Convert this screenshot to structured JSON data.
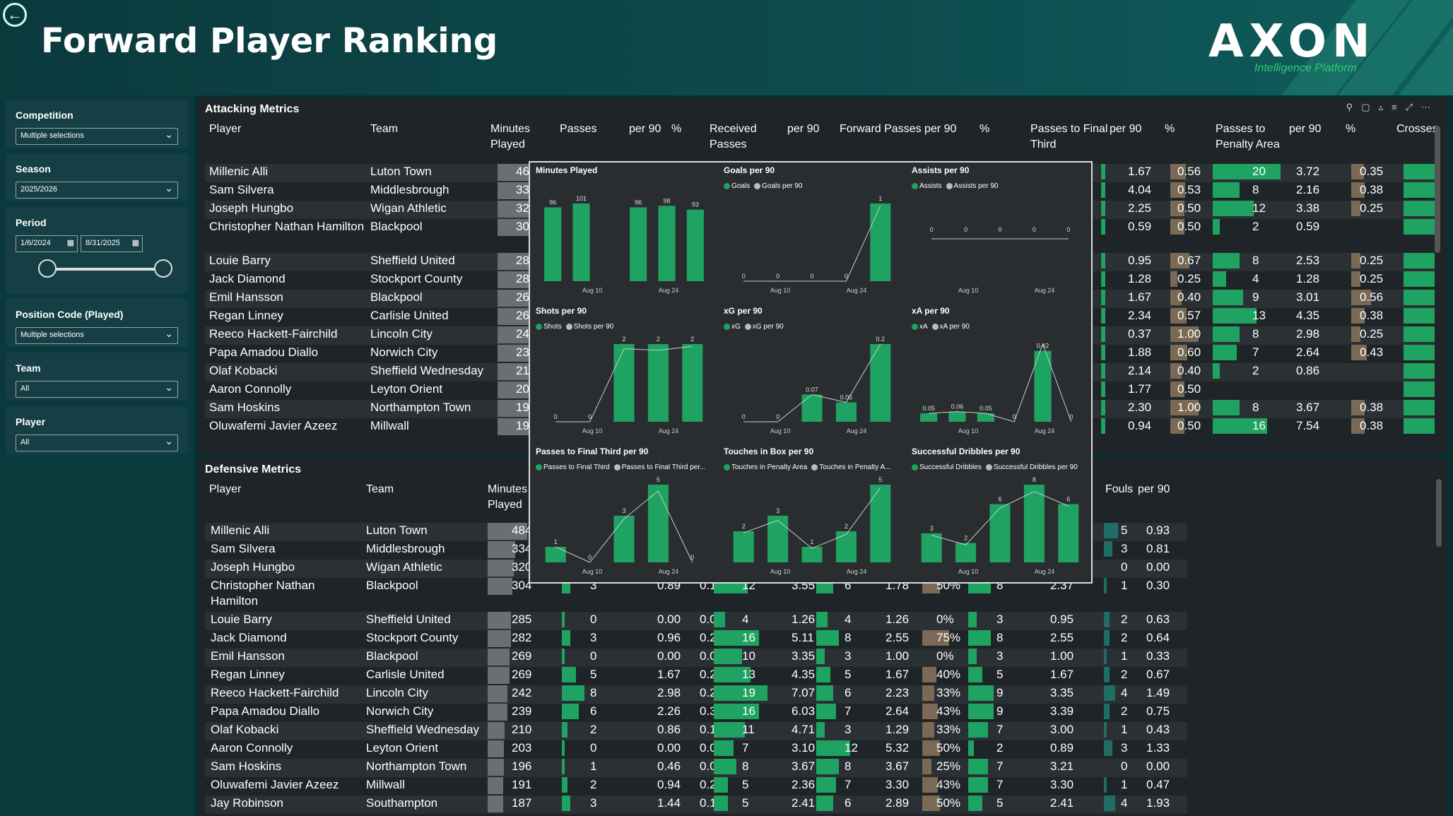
{
  "header": {
    "title": "Forward Player Ranking",
    "logo": "AXON",
    "logo_sub": "Intelligence Platform",
    "back_icon": "back-arrow-icon"
  },
  "filters": {
    "competition": {
      "label": "Competition",
      "value": "Multiple selections"
    },
    "season": {
      "label": "Season",
      "value": "2025/2026"
    },
    "period": {
      "label": "Period",
      "start": "1/6/2024",
      "end": "8/31/2025"
    },
    "position": {
      "label": "Position Code (Played)",
      "value": "Multiple selections"
    },
    "team": {
      "label": "Team",
      "value": "All"
    },
    "player": {
      "label": "Player",
      "value": "All"
    }
  },
  "attacking": {
    "title": "Attacking Metrics",
    "columns": [
      "Player",
      "Team",
      "Minutes Played",
      "Passes",
      "per 90",
      "%",
      "Received Passes",
      "per 90",
      "Forward Passes",
      "per 90",
      "%",
      "Passes to Final Third",
      "per 90",
      "%",
      "Passes to Penalty Area",
      "per 90",
      "%",
      "Crosses"
    ],
    "rows": [
      {
        "player": "Millenic Alli",
        "team": "Luton Town",
        "min": "46",
        "pft90": "1.67",
        "pftp": "0.56",
        "ppa": "20",
        "ppa90": "3.72",
        "ppap": "0.35"
      },
      {
        "player": "Sam Silvera",
        "team": "Middlesbrough",
        "min": "33",
        "pft90": "4.04",
        "pftp": "0.53",
        "ppa": "8",
        "ppa90": "2.16",
        "ppap": "0.38"
      },
      {
        "player": "Joseph Hungbo",
        "team": "Wigan Athletic",
        "min": "32",
        "pft90": "2.25",
        "pftp": "0.50",
        "ppa": "12",
        "ppa90": "3.38",
        "ppap": "0.25"
      },
      {
        "player": "Christopher Nathan Hamilton",
        "team": "Blackpool",
        "min": "30",
        "pft90": "0.59",
        "pftp": "0.50",
        "ppa": "2",
        "ppa90": "0.59",
        "ppap": ""
      },
      {
        "player": "Louie Barry",
        "team": "Sheffield United",
        "min": "28",
        "pft90": "0.95",
        "pftp": "0.67",
        "ppa": "8",
        "ppa90": "2.53",
        "ppap": "0.25"
      },
      {
        "player": "Jack Diamond",
        "team": "Stockport County",
        "min": "28",
        "pft90": "1.28",
        "pftp": "0.25",
        "ppa": "4",
        "ppa90": "1.28",
        "ppap": "0.25"
      },
      {
        "player": "Emil Hansson",
        "team": "Blackpool",
        "min": "26",
        "pft90": "1.67",
        "pftp": "0.40",
        "ppa": "9",
        "ppa90": "3.01",
        "ppap": "0.56"
      },
      {
        "player": "Regan Linney",
        "team": "Carlisle United",
        "min": "26",
        "pft90": "2.34",
        "pftp": "0.57",
        "ppa": "13",
        "ppa90": "4.35",
        "ppap": "0.38"
      },
      {
        "player": "Reeco Hackett-Fairchild",
        "team": "Lincoln City",
        "min": "24",
        "pft90": "0.37",
        "pftp": "1.00",
        "ppa": "8",
        "ppa90": "2.98",
        "ppap": "0.25"
      },
      {
        "player": "Papa Amadou Diallo",
        "team": "Norwich City",
        "min": "23",
        "pft90": "1.88",
        "pftp": "0.60",
        "ppa": "7",
        "ppa90": "2.64",
        "ppap": "0.43"
      },
      {
        "player": "Olaf Kobacki",
        "team": "Sheffield Wednesday",
        "min": "21",
        "pft90": "2.14",
        "pftp": "0.40",
        "ppa": "2",
        "ppa90": "0.86",
        "ppap": ""
      },
      {
        "player": "Aaron Connolly",
        "team": "Leyton Orient",
        "min": "20",
        "pft90": "1.77",
        "pftp": "0.50",
        "ppa": "",
        "ppa90": "",
        "ppap": ""
      },
      {
        "player": "Sam Hoskins",
        "team": "Northampton Town",
        "min": "19",
        "pft90": "2.30",
        "pftp": "1.00",
        "ppa": "8",
        "ppa90": "3.67",
        "ppap": "0.38"
      },
      {
        "player": "Oluwafemi Javier Azeez",
        "team": "Millwall",
        "min": "19",
        "pft90": "0.94",
        "pftp": "0.50",
        "ppa": "16",
        "ppa90": "7.54",
        "ppap": "0.38"
      }
    ]
  },
  "defensive": {
    "title": "Defensive Metrics",
    "columns": [
      "Player",
      "Team",
      "Minutes Played",
      "Fouls",
      "per 90"
    ],
    "rows": [
      {
        "player": "Millenic Alli",
        "team": "Luton Town",
        "min": "484",
        "c": [
          "",
          "",
          "",
          "",
          "",
          "",
          "",
          "",
          "",
          ""
        ],
        "fouls": "5",
        "f90": "0.93"
      },
      {
        "player": "Sam Silvera",
        "team": "Middlesbrough",
        "min": "334",
        "c": [
          "",
          "",
          "",
          "",
          "",
          "",
          "",
          "",
          "",
          ""
        ],
        "fouls": "3",
        "f90": "0.81"
      },
      {
        "player": "Joseph Hungbo",
        "team": "Wigan Athletic",
        "min": "320",
        "c": [
          "",
          "",
          "",
          "",
          "",
          "",
          "",
          "",
          "",
          ""
        ],
        "fouls": "0",
        "f90": "0.00"
      },
      {
        "player": "Christopher Nathan Hamilton",
        "team": "Blackpool",
        "min": "304",
        "c": [
          "3",
          "0.89",
          "0.15",
          "12",
          "3.55",
          "6",
          "1.78",
          "50%",
          "8",
          "2.37"
        ],
        "fouls": "1",
        "f90": "0.30"
      },
      {
        "player": "Louie Barry",
        "team": "Sheffield United",
        "min": "285",
        "c": [
          "0",
          "0.00",
          "0.00",
          "4",
          "1.26",
          "4",
          "1.26",
          "0%",
          "3",
          "0.95"
        ],
        "fouls": "2",
        "f90": "0.63"
      },
      {
        "player": "Jack Diamond",
        "team": "Stockport County",
        "min": "282",
        "c": [
          "3",
          "0.96",
          "0.20",
          "16",
          "5.11",
          "8",
          "2.55",
          "75%",
          "8",
          "2.55"
        ],
        "fouls": "2",
        "f90": "0.64"
      },
      {
        "player": "Emil Hansson",
        "team": "Blackpool",
        "min": "269",
        "c": [
          "0",
          "0.00",
          "0.00",
          "10",
          "3.35",
          "3",
          "1.00",
          "0%",
          "3",
          "1.00"
        ],
        "fouls": "1",
        "f90": "0.33"
      },
      {
        "player": "Regan Linney",
        "team": "Carlisle United",
        "min": "269",
        "c": [
          "5",
          "1.67",
          "0.28",
          "13",
          "4.35",
          "5",
          "1.67",
          "40%",
          "5",
          "1.67"
        ],
        "fouls": "2",
        "f90": "0.67"
      },
      {
        "player": "Reeco Hackett-Fairchild",
        "team": "Lincoln City",
        "min": "242",
        "c": [
          "8",
          "2.98",
          "0.28",
          "19",
          "7.07",
          "6",
          "2.23",
          "33%",
          "9",
          "3.35"
        ],
        "fouls": "4",
        "f90": "1.49"
      },
      {
        "player": "Papa Amadou Diallo",
        "team": "Norwich City",
        "min": "239",
        "c": [
          "6",
          "2.26",
          "0.38",
          "16",
          "6.03",
          "7",
          "2.64",
          "43%",
          "9",
          "3.39"
        ],
        "fouls": "2",
        "f90": "0.75"
      },
      {
        "player": "Olaf Kobacki",
        "team": "Sheffield Wednesday",
        "min": "210",
        "c": [
          "2",
          "0.86",
          "0.12",
          "11",
          "4.71",
          "3",
          "1.29",
          "33%",
          "7",
          "3.00"
        ],
        "fouls": "1",
        "f90": "0.43"
      },
      {
        "player": "Aaron Connolly",
        "team": "Leyton Orient",
        "min": "203",
        "c": [
          "0",
          "0.00",
          "0.00",
          "7",
          "3.10",
          "12",
          "5.32",
          "50%",
          "2",
          "0.89"
        ],
        "fouls": "3",
        "f90": "1.33"
      },
      {
        "player": "Sam Hoskins",
        "team": "Northampton Town",
        "min": "196",
        "c": [
          "1",
          "0.46",
          "0.09",
          "8",
          "3.67",
          "8",
          "3.67",
          "25%",
          "7",
          "3.21"
        ],
        "fouls": "0",
        "f90": "0.00"
      },
      {
        "player": "Oluwafemi Javier Azeez",
        "team": "Millwall",
        "min": "191",
        "c": [
          "2",
          "0.94",
          "0.20",
          "5",
          "2.36",
          "7",
          "3.30",
          "43%",
          "7",
          "3.30"
        ],
        "fouls": "1",
        "f90": "0.47"
      },
      {
        "player": "Jay Robinson",
        "team": "Southampton",
        "min": "187",
        "c": [
          "3",
          "1.44",
          "0.17",
          "5",
          "2.41",
          "6",
          "2.89",
          "50%",
          "5",
          "2.41"
        ],
        "fouls": "4",
        "f90": "1.93"
      }
    ]
  },
  "chart_data": [
    {
      "type": "bar",
      "title": "Minutes Played",
      "x_ticks": [
        "Aug 10",
        "Aug 24"
      ],
      "values": [
        96,
        101,
        null,
        96,
        98,
        93
      ],
      "ylim": [
        0,
        110
      ]
    },
    {
      "type": "bar",
      "title": "Goals per 90",
      "series": [
        {
          "name": "Goals",
          "values": [
            0,
            0,
            0,
            0,
            1
          ]
        },
        {
          "name": "Goals per 90",
          "values": [
            0,
            0,
            0,
            0,
            0.97
          ]
        }
      ],
      "x_ticks": [
        "Aug 10",
        "Aug 24"
      ]
    },
    {
      "type": "line",
      "title": "Assists per 90",
      "series": [
        {
          "name": "Assists",
          "values": [
            0,
            0,
            0,
            0,
            0
          ]
        },
        {
          "name": "Assists per 90",
          "values": [
            0.0,
            0.0,
            0.0,
            0.0,
            0.0
          ]
        }
      ],
      "x_ticks": [
        "Aug 10",
        "Aug 24"
      ]
    },
    {
      "type": "bar",
      "title": "Shots per 90",
      "series": [
        {
          "name": "Shots",
          "values": [
            0,
            0,
            2,
            2,
            2
          ]
        },
        {
          "name": "Shots per 90",
          "values": [
            0,
            0,
            1.88,
            1.84,
            1.94
          ]
        }
      ],
      "x_ticks": [
        "Aug 10",
        "Aug 24"
      ]
    },
    {
      "type": "bar",
      "title": "xG per 90",
      "series": [
        {
          "name": "xG",
          "values": [
            0.0,
            0.0,
            0.07,
            0.05,
            0.2
          ]
        },
        {
          "name": "xG per 90",
          "values": [
            0.0,
            0.0,
            0.07,
            0.05,
            0.2
          ]
        }
      ],
      "x_ticks": [
        "Aug 10",
        "Aug 24"
      ]
    },
    {
      "type": "bar",
      "title": "xA per 90",
      "series": [
        {
          "name": "xA",
          "values": [
            0.05,
            0.06,
            0.05,
            0.0,
            0.42,
            0.0
          ]
        },
        {
          "name": "xA per 90",
          "values": [
            0.05,
            0.06,
            0.05,
            0.0,
            0.46,
            0.0
          ]
        }
      ],
      "x_ticks": [
        "Aug 10",
        "Aug 24"
      ]
    },
    {
      "type": "bar",
      "title": "Passes to Final Third per 90",
      "series": [
        {
          "name": "Passes to Final Third",
          "values": [
            1,
            0,
            3,
            5,
            0
          ]
        },
        {
          "name": "Passes to Final Third per...",
          "values": [
            1,
            0,
            2.8,
            4.6,
            0
          ]
        }
      ],
      "x_ticks": [
        "Aug 10",
        "Aug 24"
      ]
    },
    {
      "type": "bar",
      "title": "Touches in Box per 90",
      "series": [
        {
          "name": "Touches in Penalty Area",
          "values": [
            2,
            3,
            1,
            2,
            5
          ]
        },
        {
          "name": "Touches in Penalty A...",
          "values": [
            1.9,
            2.7,
            0.9,
            1.8,
            4.8
          ]
        }
      ],
      "x_ticks": [
        "Aug 10",
        "Aug 24"
      ]
    },
    {
      "type": "bar",
      "title": "Successful Dribbles per 90",
      "series": [
        {
          "name": "Successful Dribbles",
          "values": [
            3.0,
            2.0,
            6.0,
            8.0,
            6.0
          ]
        },
        {
          "name": "Successful Dribbles per 90",
          "values": [
            2.8,
            1.8,
            5.6,
            7.3,
            5.8
          ]
        }
      ],
      "x_ticks": [
        "Aug 10",
        "Aug 24"
      ]
    }
  ],
  "colors": {
    "green": "#1ea362",
    "bar_grey": "#6b6f72",
    "tan": "#7a6a55",
    "teal": "#1f6d65"
  }
}
